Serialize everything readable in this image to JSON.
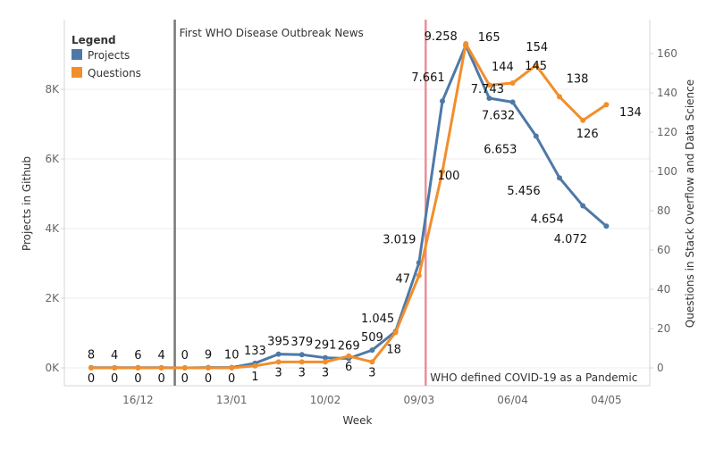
{
  "chart_data": {
    "type": "line",
    "xlabel": "Week",
    "ylabel_left": "Projects in Github",
    "ylabel_right": "Questions in Stack Overflow and Data Science",
    "x_tick_labels": [
      "16/12",
      "13/01",
      "10/02",
      "09/03",
      "06/04",
      "04/05"
    ],
    "left_ticks": [
      "0K",
      "2K",
      "4K",
      "6K",
      "8K"
    ],
    "left_ylim": [
      0,
      9500
    ],
    "right_ticks": [
      "0",
      "20",
      "40",
      "60",
      "80",
      "100",
      "120",
      "140",
      "160"
    ],
    "right_ylim": [
      -2,
      173
    ],
    "grid": "horizontal",
    "legend": {
      "title": "Legend",
      "placement": "top-left",
      "entries": [
        {
          "name": "Projects",
          "color": "#4e79a7"
        },
        {
          "name": "Questions",
          "color": "#f28e2b"
        }
      ]
    },
    "weeks": [
      "02/12",
      "09/12",
      "16/12",
      "23/12",
      "30/12",
      "06/01",
      "13/01",
      "20/01",
      "27/01",
      "03/02",
      "10/02",
      "17/02",
      "24/02",
      "02/03",
      "09/03",
      "16/03",
      "23/03",
      "30/03",
      "06/04",
      "13/04",
      "20/04",
      "27/04",
      "04/05"
    ],
    "series": [
      {
        "name": "Projects",
        "axis": "left",
        "color": "#4e79a7",
        "values": [
          8,
          4,
          6,
          4,
          0,
          9,
          10,
          133,
          395,
          379,
          291,
          269,
          509,
          1045,
          3019,
          7661,
          9258,
          7743,
          7632,
          6653,
          5456,
          4654,
          4072
        ],
        "labels": [
          "8",
          "4",
          "6",
          "4",
          "0",
          "9",
          "10",
          "133",
          "395",
          "379",
          "291",
          "269",
          "509",
          "1.045",
          "3.019",
          "7.661",
          "9.258",
          "7.743",
          "7.632",
          "6.653",
          "5.456",
          "4.654",
          "4.072"
        ]
      },
      {
        "name": "Questions",
        "axis": "right",
        "color": "#f28e2b",
        "values": [
          0,
          0,
          0,
          0,
          0,
          0,
          0,
          1,
          3,
          3,
          3,
          6,
          3,
          18,
          47,
          100,
          165,
          144,
          145,
          154,
          138,
          126,
          134
        ],
        "labels": [
          "0",
          "0",
          "0",
          "0",
          "0",
          "0",
          "0",
          "1",
          "3",
          "3",
          "3",
          "6",
          "3",
          "18",
          "47",
          "100",
          "165",
          "144",
          "145",
          "154",
          "138",
          "126",
          "134"
        ]
      }
    ],
    "reference_lines": [
      {
        "week": "27/12",
        "label": "First WHO Disease Outbreak News",
        "color": "#777777"
      },
      {
        "week": "11/03",
        "label": "WHO defined COVID-19 as a Pandemic",
        "color": "#e8909a"
      }
    ]
  }
}
